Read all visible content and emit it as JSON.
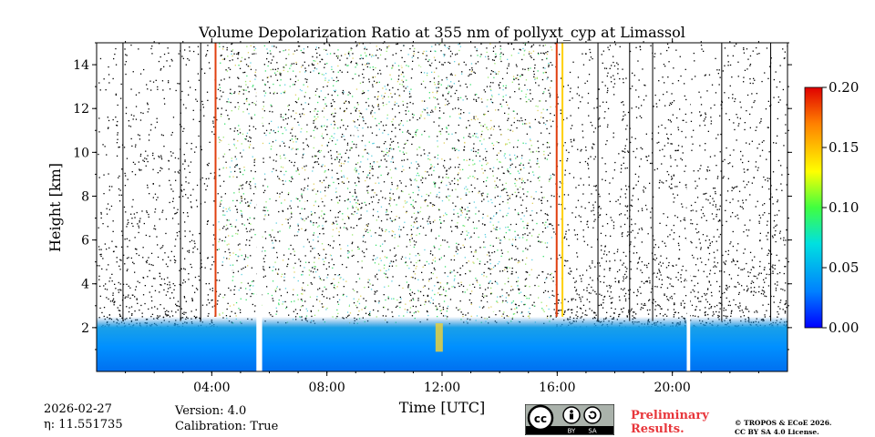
{
  "chart_data": {
    "type": "heatmap",
    "title": "Volume Depolarization Ratio at 355 nm of pollyxt_cyp at Limassol",
    "xlabel": "Time [UTC]",
    "ylabel": "Height [km]",
    "x_range_hours": [
      0,
      24
    ],
    "ylim": [
      0,
      15
    ],
    "x_ticks": [
      {
        "hour": 4,
        "label": "04:00"
      },
      {
        "hour": 8,
        "label": "08:00"
      },
      {
        "hour": 12,
        "label": "12:00"
      },
      {
        "hour": 16,
        "label": "16:00"
      },
      {
        "hour": 20,
        "label": "20:00"
      }
    ],
    "y_ticks": [
      {
        "value": 2,
        "label": "2"
      },
      {
        "value": 4,
        "label": "4"
      },
      {
        "value": 6,
        "label": "6"
      },
      {
        "value": 8,
        "label": "8"
      },
      {
        "value": 10,
        "label": "10"
      },
      {
        "value": 12,
        "label": "12"
      },
      {
        "value": 14,
        "label": "14"
      }
    ],
    "colorbar": {
      "min": 0.0,
      "max": 0.2,
      "colormap": "jet",
      "ticks": [
        "0.00",
        "0.05",
        "0.10",
        "0.15",
        "0.20"
      ]
    },
    "data_gaps_hours": [
      [
        5.55,
        5.75
      ],
      [
        20.5,
        20.62
      ]
    ],
    "noisy_daytime_hours": [
      4.2,
      15.8
    ],
    "boundary_layer_top_km": 2.5,
    "aerosol_plume": {
      "hour": 11.9,
      "top_km": 2.2
    }
  },
  "footer": {
    "date": "2026-02-27",
    "eta": "η: 11.551735",
    "version": "Version: 4.0",
    "calibration": "Calibration: True",
    "license_badge": {
      "cc": "cc",
      "by": "BY",
      "sa": "SA"
    },
    "preliminary_line1": "Preliminary",
    "preliminary_line2": "Results.",
    "copyright_line1": "© TROPOS & ECoE 2026.",
    "copyright_line2": "CC BY SA 4.0 License."
  }
}
